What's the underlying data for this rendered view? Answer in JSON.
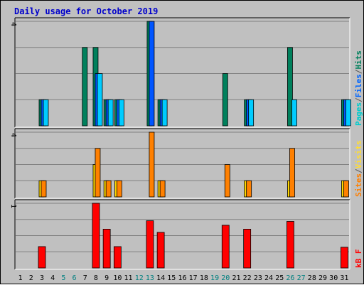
{
  "title": "Daily usage for October 2019",
  "legend": {
    "top": [
      {
        "text": "Pages",
        "color": "#00cccc"
      },
      {
        "text": "/",
        "color": "#555555"
      },
      {
        "text": "Files",
        "color": "#0066ff"
      },
      {
        "text": "/",
        "color": "#555555"
      },
      {
        "text": "Hits",
        "color": "#00805c"
      }
    ],
    "middle": [
      {
        "text": "Sites",
        "color": "#ff7f00"
      },
      {
        "text": "/",
        "color": "#555555"
      },
      {
        "text": "Visits",
        "color": "#ffdd33"
      }
    ],
    "bottom": [
      {
        "text": "kB F",
        "color": "#ff0000"
      }
    ]
  },
  "colors": {
    "hits": "#00805c",
    "files": "#0055ff",
    "pages": "#00ccff",
    "visits": "#ffd700",
    "sites": "#ff8000",
    "kbytes": "#ff0000",
    "weekend": "#008080",
    "weekday": "#000000",
    "title": "#0000cc",
    "grid": "#808080"
  },
  "chart_data": {
    "type": "bar",
    "x": [
      1,
      2,
      3,
      4,
      5,
      6,
      7,
      8,
      9,
      10,
      11,
      12,
      13,
      14,
      15,
      16,
      17,
      18,
      19,
      20,
      21,
      22,
      23,
      24,
      25,
      26,
      27,
      28,
      29,
      30,
      31
    ],
    "x_tick_labels": [
      "1",
      "2",
      "3",
      "4",
      "5",
      "6",
      "7",
      "8",
      "9",
      "10",
      "11",
      "12",
      "13",
      "14",
      "15",
      "16",
      "17",
      "18",
      "19",
      "20",
      "21",
      "22",
      "23",
      "24",
      "25",
      "26",
      "27",
      "28",
      "29",
      "30",
      "31"
    ],
    "weekend_days": [
      5,
      6,
      12,
      13,
      19,
      20,
      26,
      27
    ],
    "panels": [
      {
        "name": "hits-files-pages",
        "ymax_label": "4",
        "ylim": [
          0,
          4
        ],
        "series": [
          {
            "name": "Hits",
            "key": "hits",
            "values": [
              0,
              0,
              1,
              0,
              0,
              0,
              3,
              3,
              1,
              1,
              0,
              0,
              4,
              1,
              0,
              0,
              0,
              0,
              0,
              2,
              0,
              1,
              0,
              0,
              0,
              3,
              0,
              0,
              0,
              0,
              1
            ]
          },
          {
            "name": "Files",
            "key": "files",
            "values": [
              0,
              0,
              1,
              0,
              0,
              0,
              0,
              2,
              1,
              1,
              0,
              0,
              4,
              1,
              0,
              0,
              0,
              0,
              0,
              0,
              0,
              1,
              0,
              0,
              0,
              0,
              0,
              0,
              0,
              0,
              1
            ]
          },
          {
            "name": "Pages",
            "key": "pages",
            "values": [
              0,
              0,
              1,
              0,
              0,
              0,
              0,
              2,
              1,
              1,
              0,
              0,
              0,
              1,
              0,
              0,
              0,
              0,
              0,
              0,
              0,
              1,
              0,
              0,
              0,
              1,
              0,
              0,
              0,
              0,
              1
            ]
          }
        ]
      },
      {
        "name": "visits-sites",
        "ymax_label": "4",
        "ylim": [
          0,
          4
        ],
        "series": [
          {
            "name": "Visits",
            "key": "visits",
            "values": [
              0,
              0,
              1,
              0,
              0,
              0,
              0,
              2,
              1,
              1,
              0,
              0,
              0,
              1,
              0,
              0,
              0,
              0,
              0,
              0,
              0,
              1,
              0,
              0,
              0,
              1,
              0,
              0,
              0,
              0,
              1
            ]
          },
          {
            "name": "Sites",
            "key": "sites",
            "values": [
              0,
              0,
              1,
              0,
              0,
              0,
              0,
              3,
              1,
              1,
              0,
              0,
              4,
              1,
              0,
              0,
              0,
              0,
              0,
              2,
              0,
              1,
              0,
              0,
              0,
              3,
              0,
              0,
              0,
              0,
              1
            ]
          }
        ]
      },
      {
        "name": "kbytes",
        "ymax_label": "1",
        "ylim": [
          0,
          1
        ],
        "series": [
          {
            "name": "kB F",
            "key": "kbytes",
            "values": [
              0,
              0,
              0.33,
              0,
              0,
              0,
              0,
              1.0,
              0.6,
              0.33,
              0,
              0,
              0.73,
              0.55,
              0,
              0,
              0,
              0,
              0,
              0.66,
              0,
              0.6,
              0,
              0,
              0,
              0.72,
              0,
              0,
              0,
              0,
              0.32
            ]
          }
        ]
      }
    ]
  }
}
